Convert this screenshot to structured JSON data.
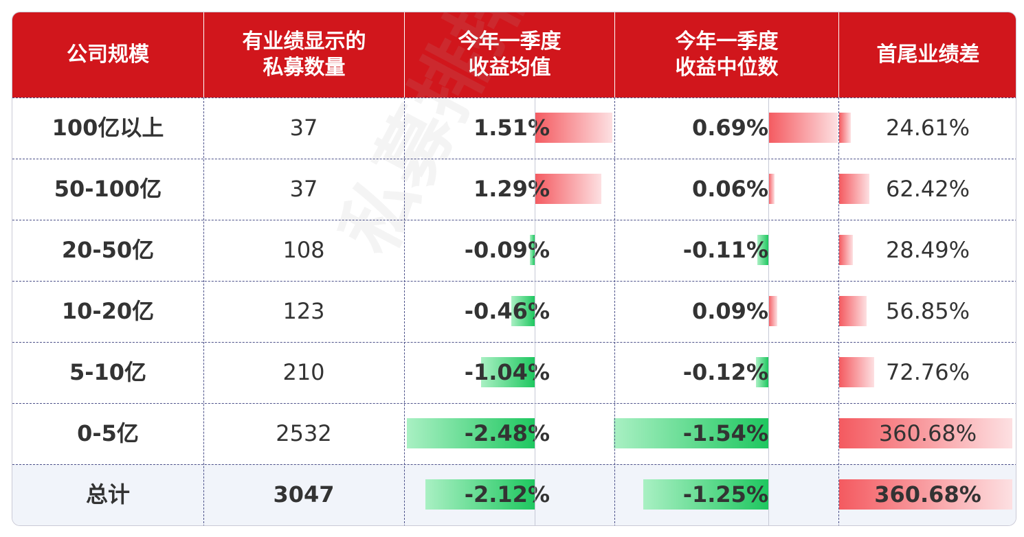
{
  "chart_data": {
    "type": "table",
    "columns": [
      "公司规模",
      "有业绩显示的\n私募数量",
      "今年一季度\n收益均值",
      "今年一季度\n收益中位数",
      "首尾业绩差"
    ],
    "rows": [
      {
        "scale": "100亿以上",
        "count": "37",
        "mean": 1.51,
        "mean_label": "1.51%",
        "median": 0.69,
        "median_label": "0.69%",
        "spread": 24.61,
        "spread_label": "24.61%"
      },
      {
        "scale": "50-100亿",
        "count": "37",
        "mean": 1.29,
        "mean_label": "1.29%",
        "median": 0.06,
        "median_label": "0.06%",
        "spread": 62.42,
        "spread_label": "62.42%"
      },
      {
        "scale": "20-50亿",
        "count": "108",
        "mean": -0.09,
        "mean_label": "-0.09%",
        "median": -0.11,
        "median_label": "-0.11%",
        "spread": 28.49,
        "spread_label": "28.49%"
      },
      {
        "scale": "10-20亿",
        "count": "123",
        "mean": -0.46,
        "mean_label": "-0.46%",
        "median": 0.09,
        "median_label": "0.09%",
        "spread": 56.85,
        "spread_label": "56.85%"
      },
      {
        "scale": "5-10亿",
        "count": "210",
        "mean": -1.04,
        "mean_label": "-1.04%",
        "median": -0.12,
        "median_label": "-0.12%",
        "spread": 72.76,
        "spread_label": "72.76%"
      },
      {
        "scale": "0-5亿",
        "count": "2532",
        "mean": -2.48,
        "mean_label": "-2.48%",
        "median": -1.54,
        "median_label": "-1.54%",
        "spread": 360.68,
        "spread_label": "360.68%"
      },
      {
        "scale": "总计",
        "count": "3047",
        "mean": -2.12,
        "mean_label": "-2.12%",
        "median": -1.25,
        "median_label": "-1.25%",
        "spread": 360.68,
        "spread_label": "360.68%",
        "is_total": true
      }
    ]
  },
  "colors": {
    "header_bg": "#d1161c",
    "positive_bar": "#f45a60",
    "negative_bar": "#1fc760",
    "grid_line": "#4a4f88"
  },
  "watermark": "私募排排网"
}
